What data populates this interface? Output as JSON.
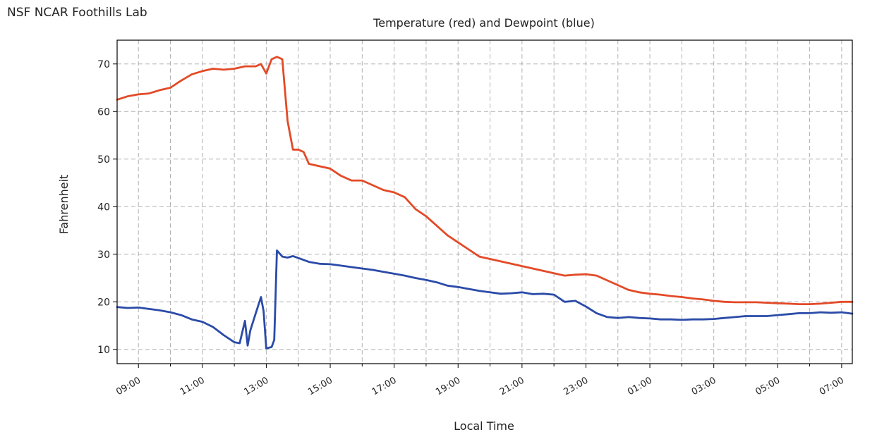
{
  "site_label": "NSF NCAR Foothills Lab",
  "chart_data": {
    "type": "line",
    "title": "Temperature (red) and Dewpoint (blue)",
    "xlabel": "Local Time",
    "ylabel": "Fahrenheit",
    "ylim": [
      7,
      75
    ],
    "xlim": [
      "08:20",
      "31:20"
    ],
    "yticks": [
      10,
      20,
      30,
      40,
      50,
      60,
      70
    ],
    "xticks": [
      "09:00",
      "11:00",
      "13:00",
      "15:00",
      "17:00",
      "19:00",
      "21:00",
      "23:00",
      "01:00",
      "03:00",
      "05:00",
      "07:00"
    ],
    "grid": true,
    "colors": {
      "temperature": "#e34a27",
      "dewpoint": "#2b4ba8",
      "grid": "#b0b0b0"
    },
    "series": [
      {
        "key": "temperature",
        "x": [
          "08:20",
          "08:40",
          "09:00",
          "09:20",
          "09:40",
          "10:00",
          "10:20",
          "10:40",
          "11:00",
          "11:20",
          "11:40",
          "12:00",
          "12:20",
          "12:40",
          "12:50",
          "13:00",
          "13:10",
          "13:20",
          "13:30",
          "13:40",
          "13:50",
          "14:00",
          "14:10",
          "14:20",
          "14:40",
          "15:00",
          "15:20",
          "15:40",
          "16:00",
          "16:20",
          "16:40",
          "17:00",
          "17:20",
          "17:40",
          "18:00",
          "18:20",
          "18:40",
          "19:00",
          "19:20",
          "19:40",
          "20:00",
          "20:20",
          "20:40",
          "21:00",
          "21:20",
          "21:40",
          "22:00",
          "22:20",
          "22:40",
          "23:00",
          "23:20",
          "23:40",
          "24:00",
          "24:20",
          "24:40",
          "25:00",
          "25:20",
          "25:40",
          "26:00",
          "26:20",
          "26:40",
          "27:00",
          "27:20",
          "27:40",
          "28:00",
          "28:20",
          "28:40",
          "29:00",
          "29:20",
          "29:40",
          "30:00",
          "30:20",
          "30:40",
          "31:00",
          "31:20"
        ],
        "y": [
          62.5,
          63.2,
          63.6,
          63.8,
          64.5,
          65.0,
          66.5,
          67.8,
          68.5,
          69.0,
          68.8,
          69.0,
          69.5,
          69.5,
          70.0,
          68.0,
          71.0,
          71.5,
          71.0,
          58.0,
          52.0,
          52.0,
          51.5,
          49.0,
          48.5,
          48.0,
          46.5,
          45.5,
          45.5,
          44.5,
          43.5,
          43.0,
          42.0,
          39.5,
          38.0,
          36.0,
          34.0,
          32.5,
          31.0,
          29.5,
          29.0,
          28.5,
          28.0,
          27.5,
          27.0,
          26.5,
          26.0,
          25.5,
          25.7,
          25.8,
          25.5,
          24.5,
          23.5,
          22.5,
          22.0,
          21.7,
          21.5,
          21.2,
          21.0,
          20.7,
          20.5,
          20.2,
          20.0,
          19.9,
          19.9,
          19.9,
          19.8,
          19.7,
          19.6,
          19.5,
          19.5,
          19.6,
          19.8,
          20.0,
          20.0
        ]
      },
      {
        "key": "dewpoint",
        "x": [
          "08:20",
          "08:40",
          "09:00",
          "09:20",
          "09:40",
          "10:00",
          "10:20",
          "10:40",
          "11:00",
          "11:20",
          "11:40",
          "12:00",
          "12:10",
          "12:20",
          "12:25",
          "12:30",
          "12:40",
          "12:50",
          "12:55",
          "13:00",
          "13:10",
          "13:15",
          "13:20",
          "13:30",
          "13:40",
          "13:50",
          "14:00",
          "14:20",
          "14:40",
          "15:00",
          "15:20",
          "15:40",
          "16:00",
          "16:20",
          "16:40",
          "17:00",
          "17:20",
          "17:40",
          "18:00",
          "18:20",
          "18:40",
          "19:00",
          "19:20",
          "19:40",
          "20:00",
          "20:20",
          "20:40",
          "21:00",
          "21:20",
          "21:40",
          "22:00",
          "22:20",
          "22:40",
          "23:00",
          "23:20",
          "23:40",
          "24:00",
          "24:20",
          "24:40",
          "25:00",
          "25:20",
          "25:40",
          "26:00",
          "26:20",
          "26:40",
          "27:00",
          "27:20",
          "27:40",
          "28:00",
          "28:20",
          "28:40",
          "29:00",
          "29:20",
          "29:40",
          "30:00",
          "30:20",
          "30:40",
          "31:00",
          "31:20"
        ],
        "y": [
          18.9,
          18.7,
          18.8,
          18.5,
          18.2,
          17.8,
          17.2,
          16.3,
          15.8,
          14.7,
          13.0,
          11.5,
          11.3,
          16.0,
          10.8,
          14.0,
          17.5,
          21.0,
          18.0,
          10.2,
          10.5,
          12.0,
          30.8,
          29.5,
          29.3,
          29.6,
          29.2,
          28.4,
          28.0,
          27.9,
          27.6,
          27.3,
          27.0,
          26.7,
          26.3,
          25.9,
          25.5,
          25.0,
          24.6,
          24.1,
          23.4,
          23.1,
          22.7,
          22.3,
          22.0,
          21.7,
          21.8,
          22.0,
          21.6,
          21.7,
          21.5,
          20.0,
          20.2,
          19.0,
          17.6,
          16.8,
          16.6,
          16.8,
          16.6,
          16.5,
          16.3,
          16.3,
          16.2,
          16.3,
          16.3,
          16.4,
          16.6,
          16.8,
          17.0,
          17.0,
          17.0,
          17.2,
          17.4,
          17.6,
          17.6,
          17.8,
          17.7,
          17.8,
          17.5
        ]
      }
    ]
  }
}
